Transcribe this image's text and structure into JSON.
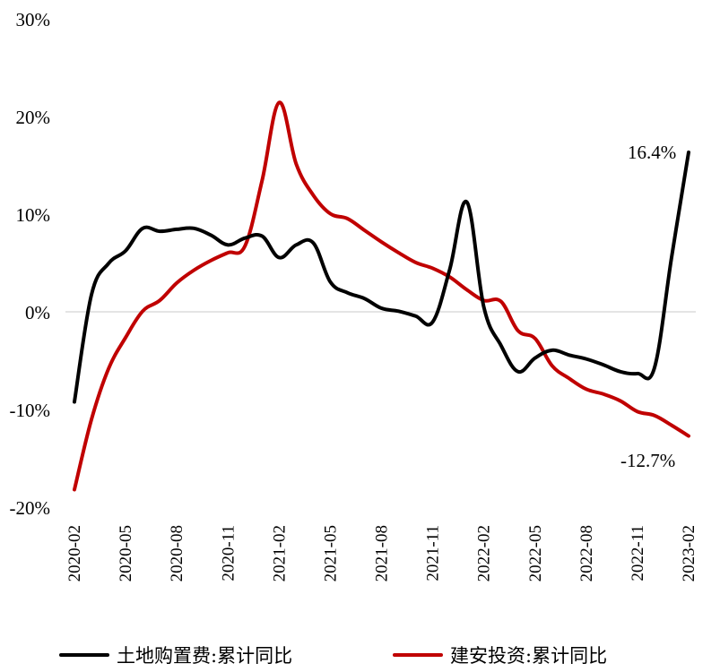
{
  "chart_data": {
    "type": "line",
    "title": "",
    "xlabel": "",
    "ylabel": "",
    "ylim": [
      -20,
      30
    ],
    "y_ticks": [
      "30%",
      "20%",
      "10%",
      "0%",
      "-10%",
      "-20%"
    ],
    "y_tick_values": [
      30,
      20,
      10,
      0,
      -10,
      -20
    ],
    "x": [
      "2020-02",
      "2020-03",
      "2020-04",
      "2020-05",
      "2020-06",
      "2020-07",
      "2020-08",
      "2020-09",
      "2020-10",
      "2020-11",
      "2020-12",
      "2021-01",
      "2021-02",
      "2021-03",
      "2021-04",
      "2021-05",
      "2021-06",
      "2021-07",
      "2021-08",
      "2021-09",
      "2021-10",
      "2021-11",
      "2021-12",
      "2022-01",
      "2022-02",
      "2022-03",
      "2022-04",
      "2022-05",
      "2022-06",
      "2022-07",
      "2022-08",
      "2022-09",
      "2022-10",
      "2022-11",
      "2022-12",
      "2023-01",
      "2023-02"
    ],
    "x_tick_labels": [
      "2020-02",
      "2020-05",
      "2020-08",
      "2020-11",
      "2021-02",
      "2021-05",
      "2021-08",
      "2021-11",
      "2022-02",
      "2022-05",
      "2022-08",
      "2022-11",
      "2023-02"
    ],
    "grid": false,
    "legend_position": "bottom",
    "series": [
      {
        "name": "土地购置费:累计同比",
        "color": "#000000",
        "values": [
          -9.2,
          1.8,
          5.0,
          6.3,
          8.6,
          8.3,
          8.5,
          8.6,
          7.9,
          6.9,
          7.6,
          7.8,
          5.6,
          6.9,
          7.1,
          3.1,
          2.0,
          1.4,
          0.4,
          0.1,
          -0.4,
          -1.0,
          4.4,
          11.3,
          0.5,
          -3.4,
          -6.1,
          -4.7,
          -3.9,
          -4.4,
          -4.8,
          -5.4,
          -6.1,
          -6.3,
          -5.7,
          5.6,
          16.4
        ]
      },
      {
        "name": "建安投资:累计同比",
        "color": "#c00000",
        "values": [
          -18.2,
          -11.0,
          -5.8,
          -2.6,
          0.1,
          1.2,
          3.0,
          4.3,
          5.3,
          6.1,
          6.8,
          13.5,
          21.5,
          15.2,
          12.0,
          10.1,
          9.6,
          8.4,
          7.2,
          6.1,
          5.1,
          4.5,
          3.6,
          2.3,
          1.2,
          1.1,
          -1.9,
          -2.7,
          -5.5,
          -6.8,
          -7.9,
          -8.4,
          -9.1,
          -10.2,
          -10.6,
          -11.6,
          -12.7
        ]
      }
    ],
    "annotations": [
      "16.4%",
      "-12.7%"
    ]
  }
}
